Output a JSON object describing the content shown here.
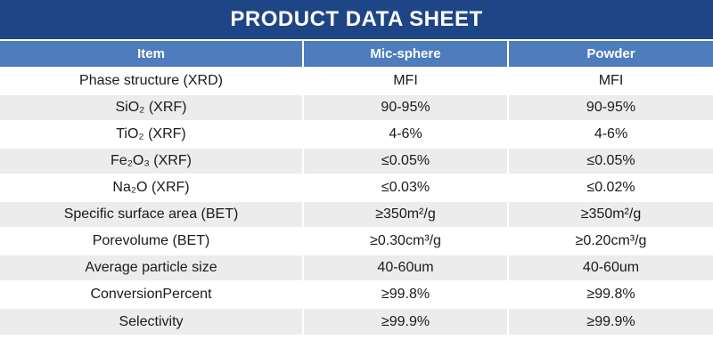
{
  "title": "PRODUCT DATA SHEET",
  "colors": {
    "title_bar": "#1E4586",
    "header_row": "#4E7CBD",
    "row_alt": "#ECECEC",
    "text": "#1A1A1A"
  },
  "table": {
    "headers": [
      "Item",
      "Mic-sphere",
      "Powder"
    ],
    "rows": [
      {
        "item": "Phase structure (XRD)",
        "mic": "MFI",
        "powder": "MFI"
      },
      {
        "item": "SiO₂ (XRF)",
        "mic": "90-95%",
        "powder": "90-95%"
      },
      {
        "item": "TiO₂ (XRF)",
        "mic": "4-6%",
        "powder": "4-6%"
      },
      {
        "item": "Fe₂O₃ (XRF)",
        "mic": "≤0.05%",
        "powder": "≤0.05%"
      },
      {
        "item": "Na₂O (XRF)",
        "mic": "≤0.03%",
        "powder": "≤0.02%"
      },
      {
        "item": "Specific surface area (BET)",
        "mic": "≥350m²/g",
        "powder": "≥350m²/g"
      },
      {
        "item": "Porevolume (BET)",
        "mic": "≥0.30cm³/g",
        "powder": "≥0.20cm³/g"
      },
      {
        "item": "Average particle size",
        "mic": "40-60um",
        "powder": "40-60um"
      },
      {
        "item": "ConversionPercent",
        "mic": "≥99.8%",
        "powder": "≥99.8%"
      },
      {
        "item": "Selectivity",
        "mic": "≥99.9%",
        "powder": "≥99.9%"
      }
    ]
  }
}
